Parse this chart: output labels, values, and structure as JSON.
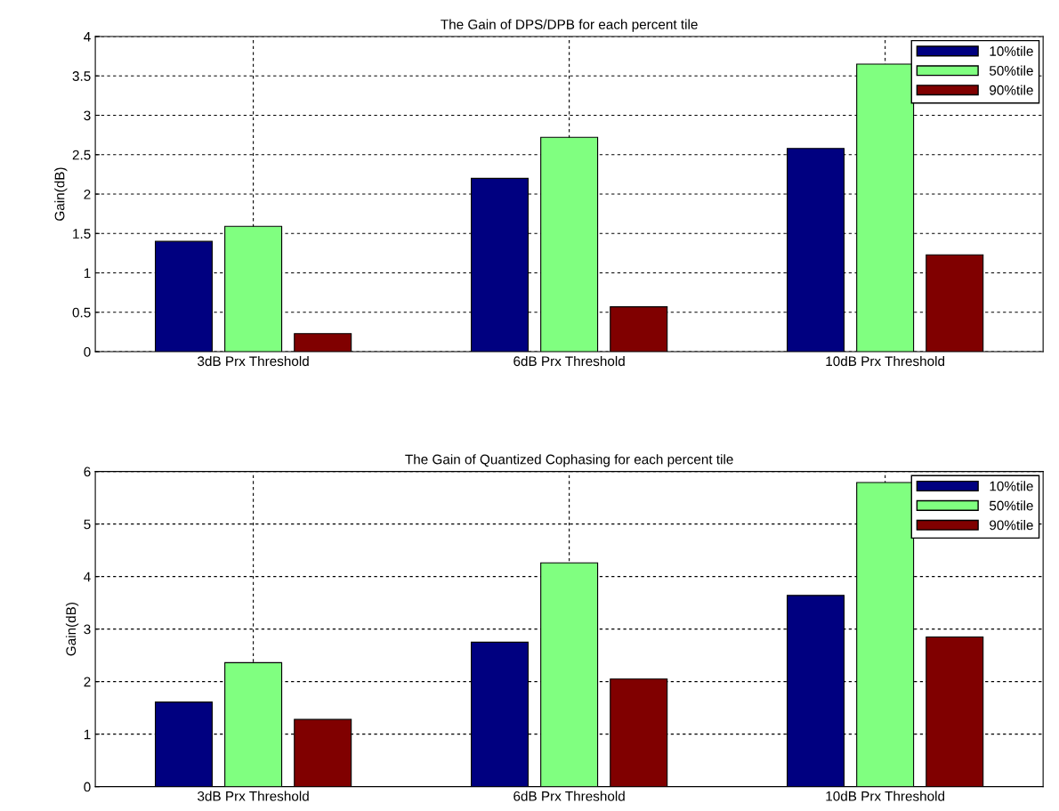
{
  "chart_data": [
    {
      "type": "bar",
      "title": "The Gain of DPS/DPB for each percent tile",
      "ylabel": "Gain(dB)",
      "categories": [
        "3dB Prx Threshold",
        "6dB Prx Threshold",
        "10dB Prx Threshold"
      ],
      "series": [
        {
          "name": "10%tile",
          "color": "#000080",
          "values": [
            1.4,
            2.2,
            2.58
          ]
        },
        {
          "name": "50%tile",
          "color": "#80ff80",
          "values": [
            1.59,
            2.72,
            3.65
          ]
        },
        {
          "name": "90%tile",
          "color": "#800000",
          "values": [
            0.23,
            0.57,
            1.23
          ]
        }
      ],
      "ylim": [
        0,
        4
      ],
      "yticks": [
        0,
        0.5,
        1,
        1.5,
        2,
        2.5,
        3,
        3.5,
        4
      ],
      "grid": true,
      "legend": "top right"
    },
    {
      "type": "bar",
      "title": "The Gain of Quantized Cophasing for each percent tile",
      "ylabel": "Gain(dB)",
      "categories": [
        "3dB Prx Threshold",
        "6dB Prx Threshold",
        "10dB Prx Threshold"
      ],
      "series": [
        {
          "name": "10%tile",
          "color": "#000080",
          "values": [
            1.61,
            2.75,
            3.64
          ]
        },
        {
          "name": "50%tile",
          "color": "#80ff80",
          "values": [
            2.36,
            4.26,
            5.79
          ]
        },
        {
          "name": "90%tile",
          "color": "#800000",
          "values": [
            1.28,
            2.05,
            2.85
          ]
        }
      ],
      "ylim": [
        0,
        6
      ],
      "yticks": [
        0,
        1,
        2,
        3,
        4,
        5,
        6
      ],
      "grid": true,
      "legend": "top right"
    }
  ]
}
